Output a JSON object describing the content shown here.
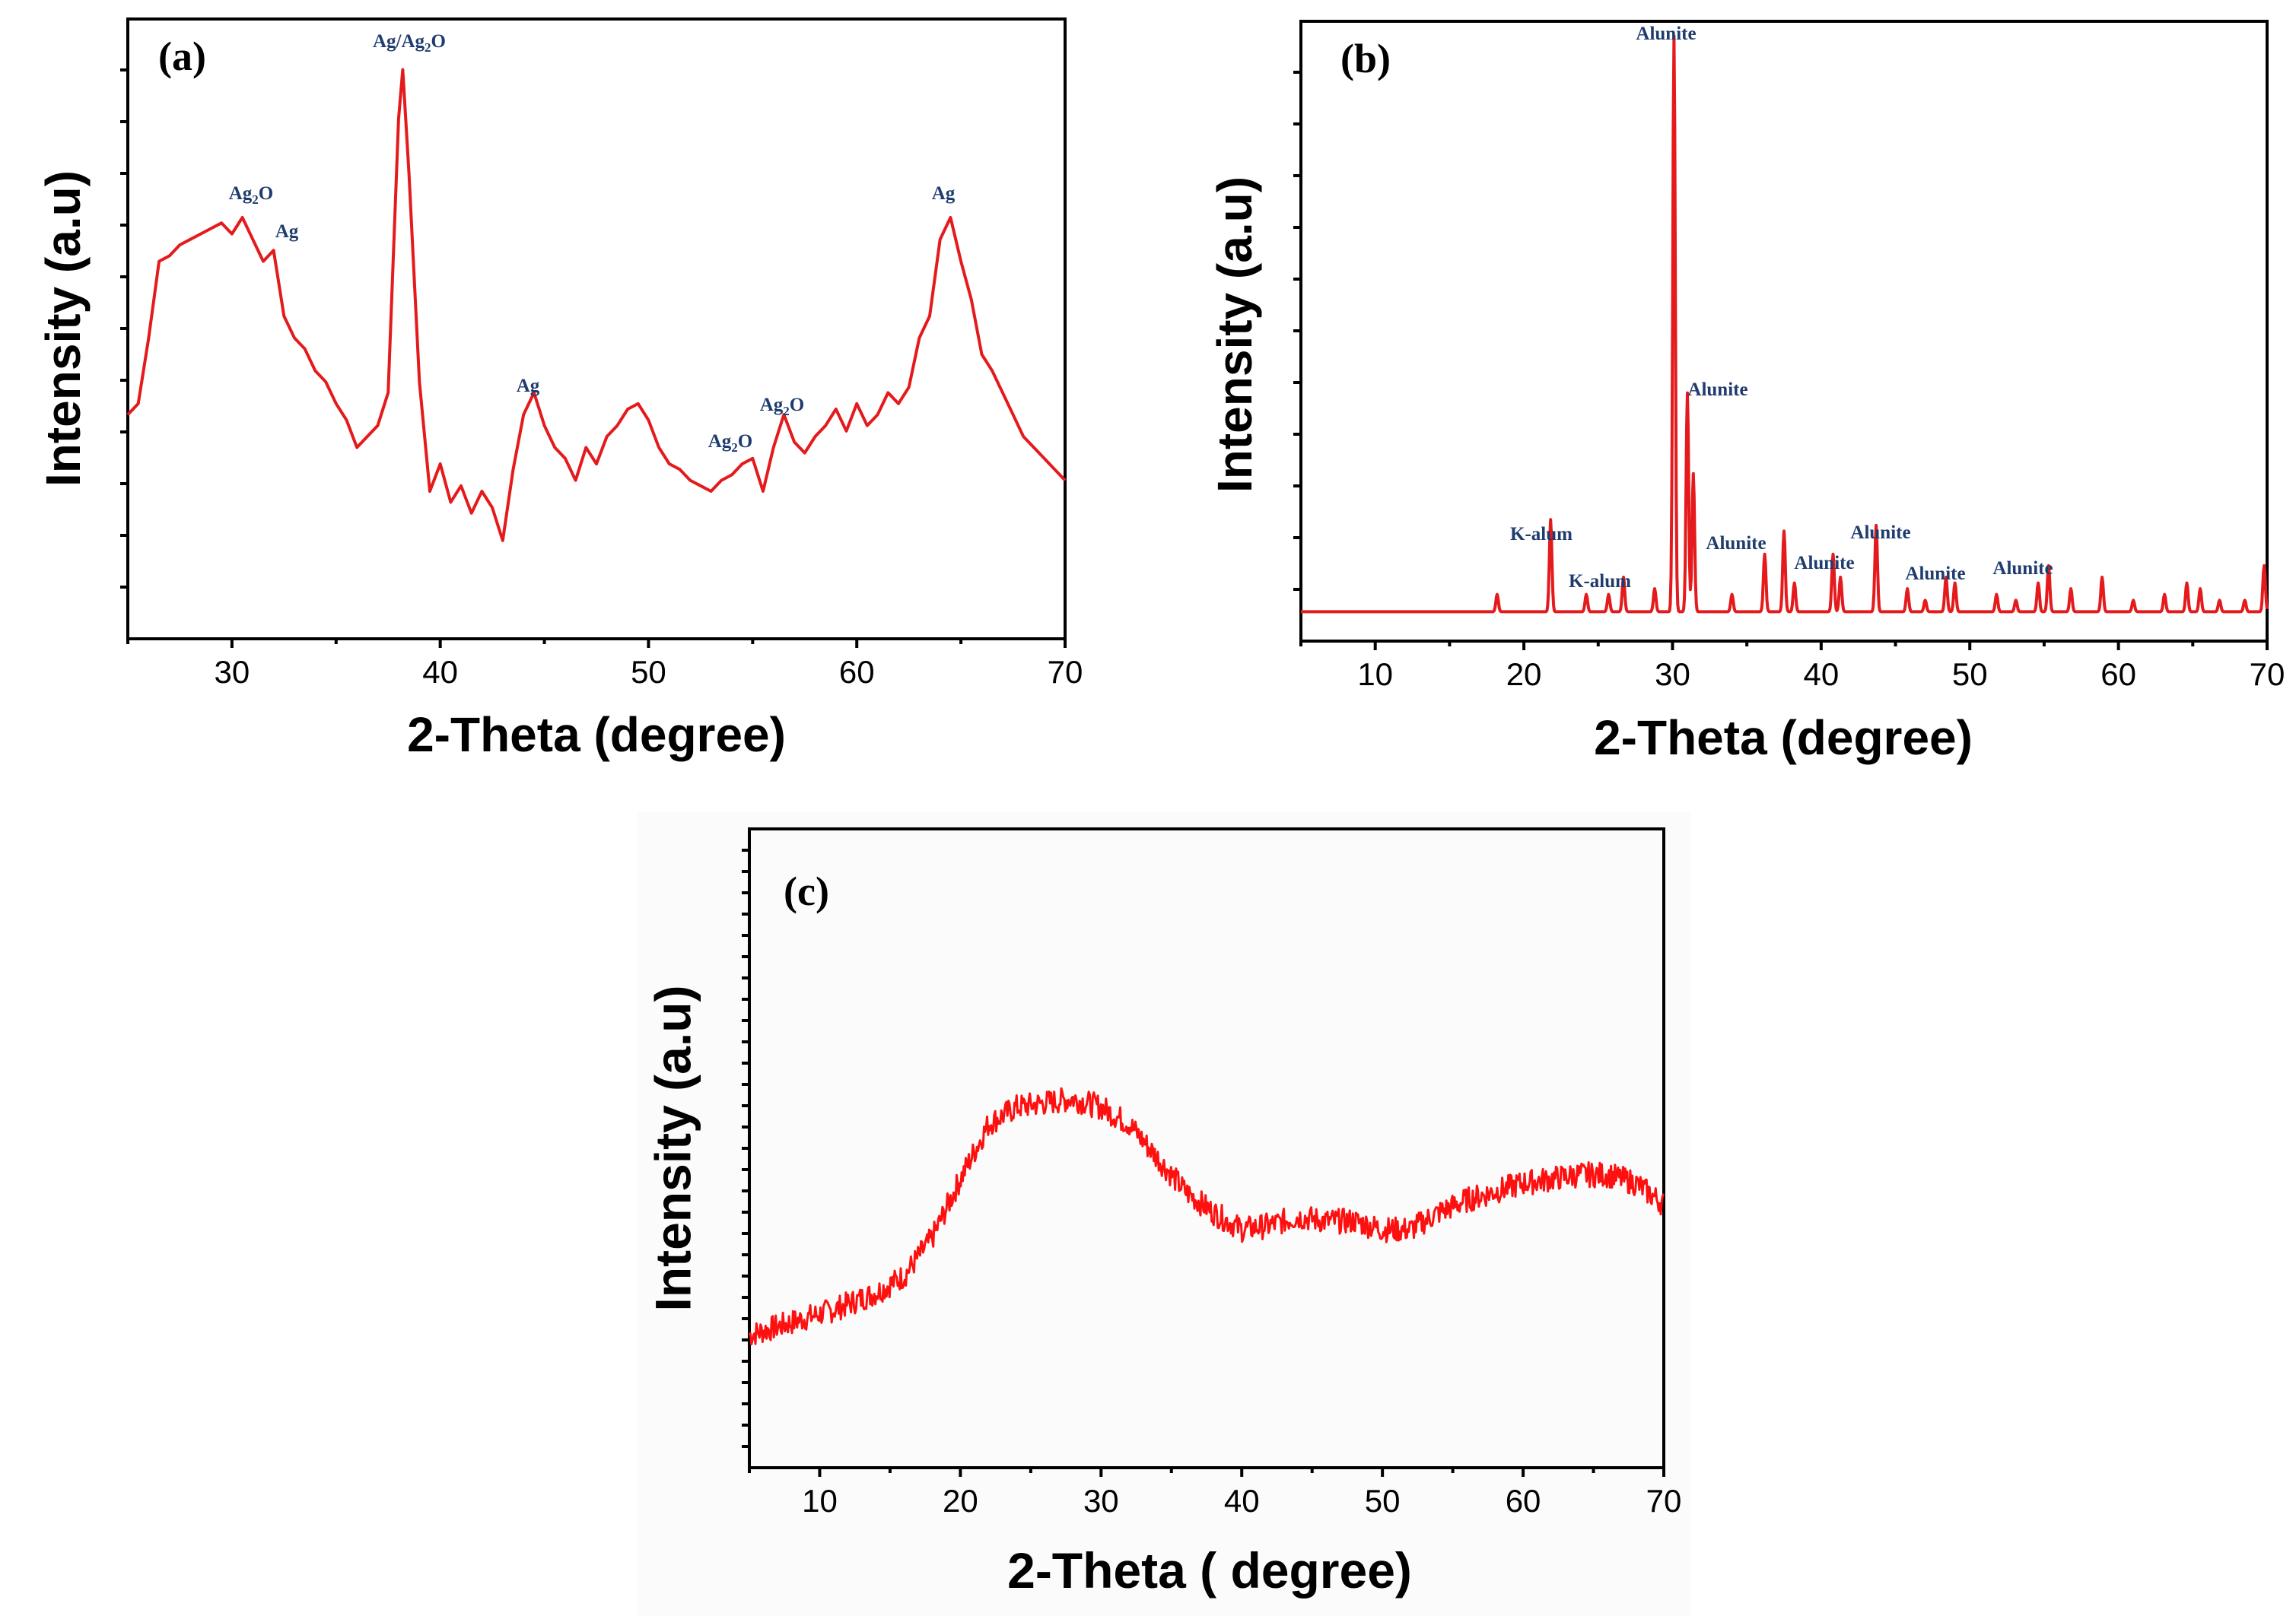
{
  "chart_data": [
    {
      "type": "line",
      "panel": "(a)",
      "xlabel": "2-Theta (degree)",
      "ylabel": "Intensity (a.u)",
      "xlim": [
        25,
        70
      ],
      "ylim": [
        0,
        100
      ],
      "xticks": [
        30,
        40,
        50,
        60,
        70
      ],
      "grid": false,
      "series": [
        {
          "name": "pattern-a",
          "x": [
            25,
            25.5,
            26,
            26.5,
            27,
            27.5,
            28,
            28.5,
            29,
            29.5,
            30,
            30.5,
            31,
            31.5,
            32,
            32.5,
            33,
            33.5,
            34,
            34.5,
            35,
            35.5,
            36,
            36.5,
            37,
            37.5,
            38,
            38.2,
            38.5,
            39,
            39.5,
            40,
            40.5,
            41,
            41.5,
            42,
            42.5,
            43,
            43.5,
            44,
            44.5,
            45,
            45.5,
            46,
            46.5,
            47,
            47.5,
            48,
            48.5,
            49,
            49.5,
            50,
            50.5,
            51,
            51.5,
            52,
            52.5,
            53,
            53.5,
            54,
            54.5,
            55,
            55.5,
            56,
            56.5,
            57,
            57.5,
            58,
            58.5,
            59,
            59.5,
            60,
            60.5,
            61,
            61.5,
            62,
            62.5,
            63,
            63.5,
            64,
            64.5,
            65,
            65.5,
            66,
            66.5,
            67,
            67.5,
            68,
            68.5,
            69,
            69.5,
            70
          ],
          "values": [
            34,
            36,
            48,
            62,
            63,
            65,
            66,
            67,
            68,
            69,
            67,
            70,
            66,
            62,
            64,
            52,
            48,
            46,
            42,
            40,
            36,
            33,
            28,
            30,
            32,
            38,
            88,
            97,
            78,
            40,
            20,
            25,
            18,
            21,
            16,
            20,
            17,
            11,
            24,
            34,
            38,
            32,
            28,
            26,
            22,
            28,
            25,
            30,
            32,
            35,
            36,
            33,
            28,
            25,
            24,
            22,
            21,
            20,
            22,
            23,
            25,
            26,
            20,
            28,
            34,
            29,
            27,
            30,
            32,
            35,
            31,
            36,
            32,
            34,
            38,
            36,
            39,
            48,
            52,
            66,
            70,
            62,
            55,
            45,
            42,
            38,
            34,
            30,
            28,
            26,
            24,
            22
          ]
        }
      ],
      "annotations": [
        {
          "label": "Ag/Ag2O",
          "x": 38.2
        },
        {
          "label": "Ag2O",
          "x": 30.8
        },
        {
          "label": "Ag",
          "x": 32.3
        },
        {
          "label": "Ag",
          "x": 44.3
        },
        {
          "label": "Ag2O",
          "x": 54.0
        },
        {
          "label": "Ag2O",
          "x": 56.4
        },
        {
          "label": "Ag",
          "x": 64.3
        }
      ]
    },
    {
      "type": "line",
      "panel": "(b)",
      "xlabel": "2-Theta (degree)",
      "ylabel": "Intensity (a.u)",
      "xlim": [
        5,
        70
      ],
      "ylim": [
        0,
        100
      ],
      "xticks": [
        10,
        20,
        30,
        40,
        50,
        60,
        70
      ],
      "grid": false,
      "series": [
        {
          "name": "pattern-b",
          "baseline": 1,
          "peaks": [
            {
              "x": 18.2,
              "y": 3
            },
            {
              "x": 21.8,
              "y": 16
            },
            {
              "x": 24.2,
              "y": 3
            },
            {
              "x": 25.7,
              "y": 3
            },
            {
              "x": 26.7,
              "y": 6
            },
            {
              "x": 28.8,
              "y": 4
            },
            {
              "x": 30.1,
              "y": 100
            },
            {
              "x": 31.0,
              "y": 38
            },
            {
              "x": 31.4,
              "y": 24
            },
            {
              "x": 34.0,
              "y": 3
            },
            {
              "x": 36.2,
              "y": 10
            },
            {
              "x": 37.5,
              "y": 14
            },
            {
              "x": 38.2,
              "y": 5
            },
            {
              "x": 40.8,
              "y": 10
            },
            {
              "x": 41.3,
              "y": 6
            },
            {
              "x": 43.7,
              "y": 15
            },
            {
              "x": 45.8,
              "y": 4
            },
            {
              "x": 47.0,
              "y": 2
            },
            {
              "x": 48.4,
              "y": 6
            },
            {
              "x": 49.0,
              "y": 5
            },
            {
              "x": 51.8,
              "y": 3
            },
            {
              "x": 53.1,
              "y": 2
            },
            {
              "x": 54.6,
              "y": 5
            },
            {
              "x": 55.3,
              "y": 8
            },
            {
              "x": 56.8,
              "y": 4
            },
            {
              "x": 58.9,
              "y": 6
            },
            {
              "x": 61.0,
              "y": 2
            },
            {
              "x": 63.1,
              "y": 3
            },
            {
              "x": 64.6,
              "y": 5
            },
            {
              "x": 65.5,
              "y": 4
            },
            {
              "x": 66.8,
              "y": 2
            },
            {
              "x": 68.5,
              "y": 2
            },
            {
              "x": 69.8,
              "y": 8
            }
          ]
        }
      ],
      "annotations": [
        {
          "label": "Alunite",
          "x": 30.1
        },
        {
          "label": "Alunite",
          "x": 31.0
        },
        {
          "label": "K-alum",
          "x": 21.8
        },
        {
          "label": "K-alum",
          "x": 26.7
        },
        {
          "label": "Alunite",
          "x": 36.2
        },
        {
          "label": "Alunite",
          "x": 40.8
        },
        {
          "label": "Alunite",
          "x": 43.7
        },
        {
          "label": "Alunite",
          "x": 48.4
        },
        {
          "label": "Alunite",
          "x": 54.6
        }
      ]
    },
    {
      "type": "line",
      "panel": "(c)",
      "xlabel": "2-Theta ( degree)",
      "ylabel": "Intensity (a.u)",
      "xlim": [
        5,
        70
      ],
      "ylim": [
        0,
        100
      ],
      "xticks": [
        10,
        20,
        30,
        40,
        50,
        60,
        70
      ],
      "grid": false,
      "series": [
        {
          "name": "pattern-c",
          "x": [
            5,
            8,
            11,
            14,
            16,
            18,
            20,
            22,
            24,
            26,
            28,
            30,
            32,
            34,
            36,
            38,
            40,
            42,
            44,
            46,
            48,
            50,
            52,
            54,
            56,
            58,
            60,
            62,
            64,
            66,
            68,
            70
          ],
          "values": [
            8,
            11,
            14,
            18,
            22,
            31,
            45,
            58,
            62,
            63,
            64,
            62,
            58,
            50,
            42,
            37,
            33,
            34,
            36,
            35,
            35,
            33,
            33,
            37,
            40,
            42,
            44,
            45,
            46,
            46,
            44,
            39
          ]
        }
      ]
    }
  ]
}
